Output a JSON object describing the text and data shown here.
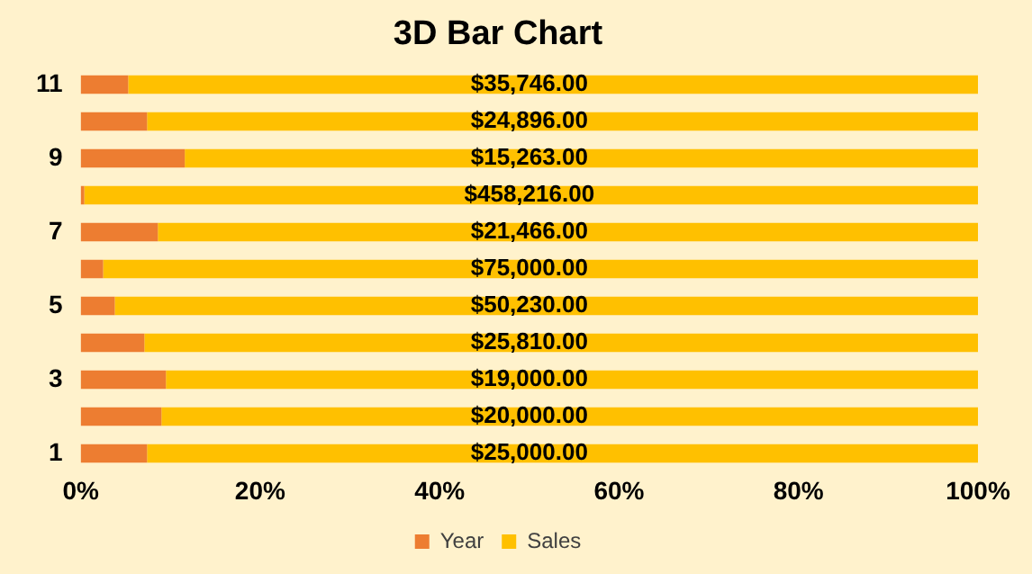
{
  "chart_data": {
    "type": "bar",
    "title": "3D Bar Chart",
    "orientation": "horizontal",
    "stacked": true,
    "categories": [
      "11",
      null,
      "9",
      null,
      "7",
      null,
      "5",
      null,
      "3",
      null,
      "1"
    ],
    "series": [
      {
        "name": "Year",
        "color": "#ed7d31",
        "values": [
          5.3,
          7.4,
          11.6,
          0.4,
          8.6,
          2.5,
          3.8,
          7.1,
          9.5,
          9.0,
          7.4
        ]
      },
      {
        "name": "Sales",
        "color": "#ffc000",
        "values": [
          94.7,
          92.6,
          88.4,
          99.6,
          91.4,
          97.5,
          96.2,
          92.9,
          90.5,
          91.0,
          92.6
        ]
      }
    ],
    "annotations": [
      "$35,746.00",
      "$24,896.00",
      "$15,263.00",
      "$458,216.00",
      "$21,466.00",
      "$75,000.00",
      "$50,230.00",
      "$25,810.00",
      "$19,000.00",
      "$20,000.00",
      "$25,000.00"
    ],
    "xlim": [
      0,
      100
    ],
    "xticks": [
      {
        "value": 0,
        "label": "0%"
      },
      {
        "value": 20,
        "label": "20%"
      },
      {
        "value": 40,
        "label": "40%"
      },
      {
        "value": 60,
        "label": "60%"
      },
      {
        "value": 80,
        "label": "80%"
      },
      {
        "value": 100,
        "label": "100%"
      }
    ],
    "grid": false,
    "legend": "bottom"
  }
}
